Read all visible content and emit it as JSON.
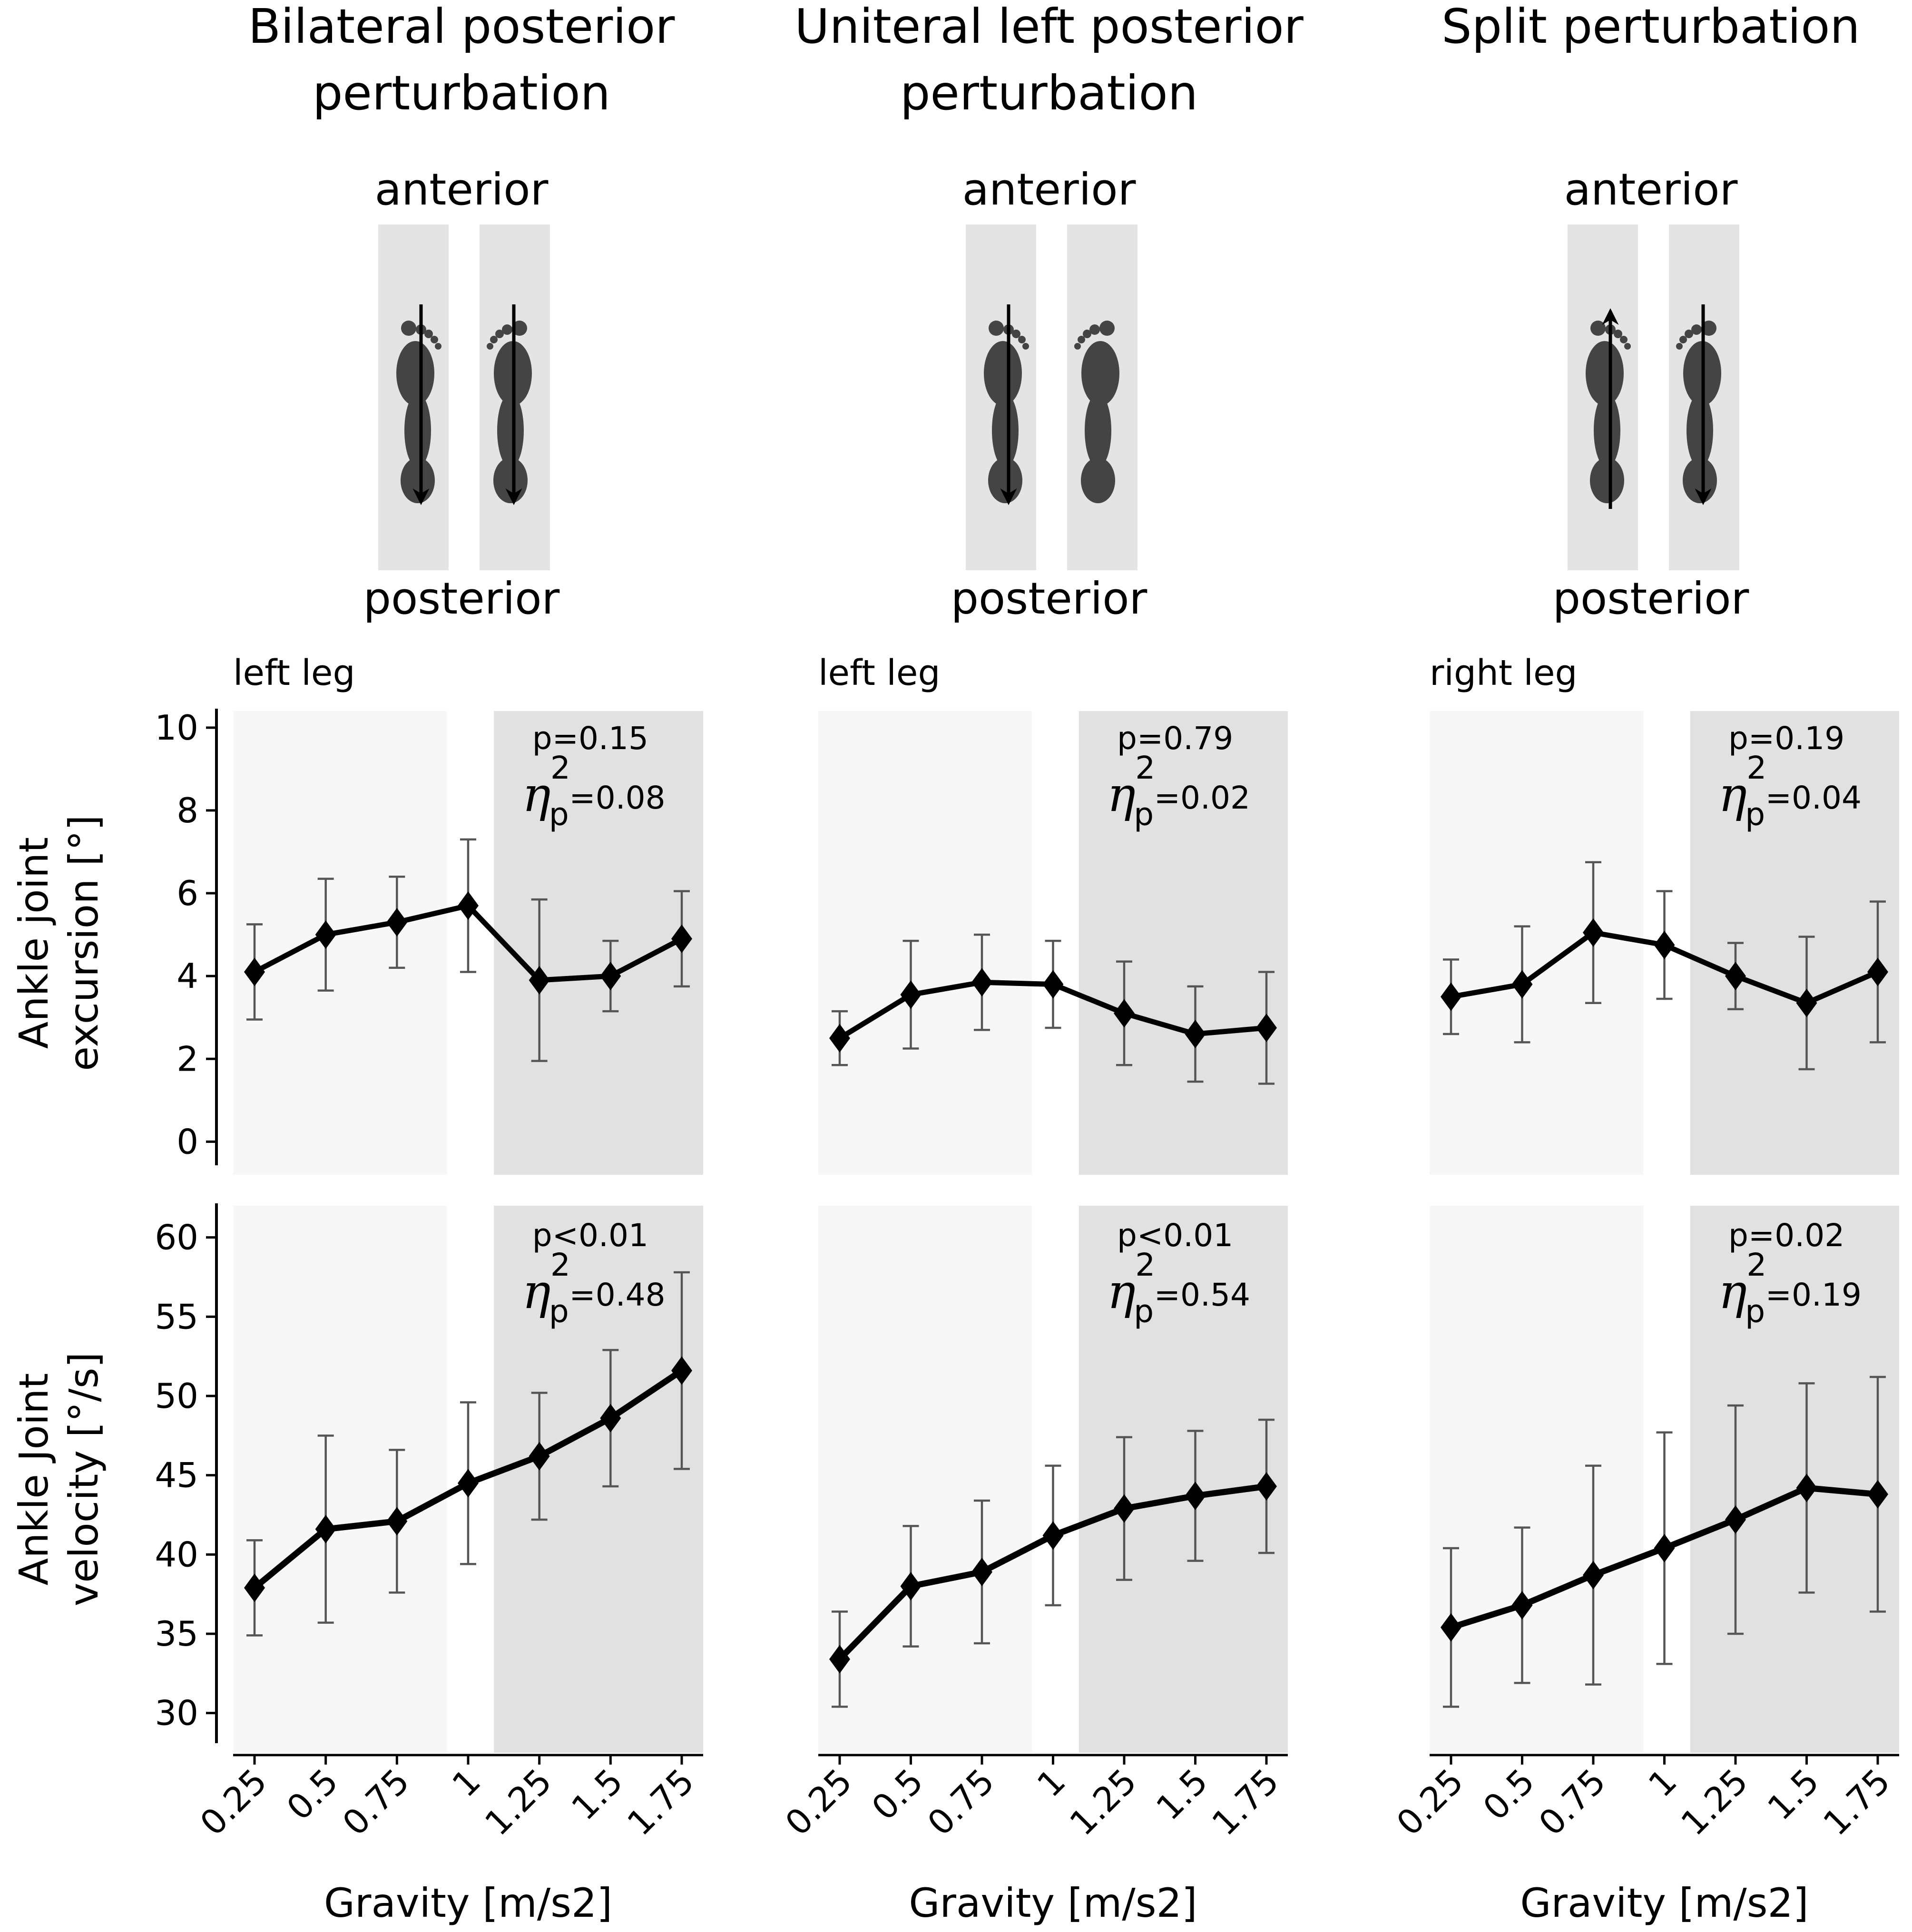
{
  "columns": [
    {
      "title_lines": [
        "Bilateral posterior",
        "perturbation"
      ],
      "direction_top": "anterior",
      "direction_bottom": "posterior",
      "arrows": {
        "left": "down",
        "right": "down"
      },
      "leg_label": "left leg",
      "excursion_stats": {
        "p": "p=0.15",
        "eta_value": "=0.08"
      },
      "velocity_stats": {
        "p": "p<0.01",
        "eta_value": "=0.48"
      }
    },
    {
      "title_lines": [
        "Uniteral left posterior",
        "perturbation"
      ],
      "direction_top": "anterior",
      "direction_bottom": "posterior",
      "arrows": {
        "left": "down",
        "right": "none"
      },
      "leg_label": "left leg",
      "excursion_stats": {
        "p": "p=0.79",
        "eta_value": "=0.02"
      },
      "velocity_stats": {
        "p": "p<0.01",
        "eta_value": "=0.54"
      }
    },
    {
      "title_lines": [
        "Split perturbation"
      ],
      "direction_top": "anterior",
      "direction_bottom": "posterior",
      "arrows": {
        "left": "up",
        "right": "down"
      },
      "leg_label": "right leg",
      "excursion_stats": {
        "p": "p=0.19",
        "eta_value": "=0.04"
      },
      "velocity_stats": {
        "p": "p=0.02",
        "eta_value": "=0.19"
      }
    }
  ],
  "eta_symbol": "η",
  "eta_super": "2",
  "eta_sub": "p",
  "chart_data": [
    {
      "type": "line",
      "panel": "Bilateral posterior - left leg - excursion",
      "categories": [
        "0.25",
        "0.5",
        "0.75",
        "1",
        "1.25",
        "1.5",
        "1.75"
      ],
      "values": [
        4.1,
        5.0,
        5.3,
        5.7,
        3.9,
        4.0,
        4.9
      ],
      "errors": [
        1.15,
        1.35,
        1.1,
        1.6,
        1.95,
        0.85,
        1.15
      ],
      "ylabel": "Ankle joint excursion [°]",
      "ylim": [
        -0.8,
        10.4
      ],
      "yticks": [
        "0",
        "2",
        "4",
        "6",
        "8",
        "10"
      ]
    },
    {
      "type": "line",
      "panel": "Uniteral left posterior - left leg - excursion",
      "categories": [
        "0.25",
        "0.5",
        "0.75",
        "1",
        "1.25",
        "1.5",
        "1.75"
      ],
      "values": [
        2.5,
        3.55,
        3.85,
        3.8,
        3.1,
        2.6,
        2.75
      ],
      "errors": [
        0.65,
        1.3,
        1.15,
        1.05,
        1.25,
        1.15,
        1.35
      ],
      "ylim": [
        -0.8,
        10.4
      ]
    },
    {
      "type": "line",
      "panel": "Split - right leg - excursion",
      "categories": [
        "0.25",
        "0.5",
        "0.75",
        "1",
        "1.25",
        "1.5",
        "1.75"
      ],
      "values": [
        3.5,
        3.8,
        5.05,
        4.75,
        4.0,
        3.35,
        4.1
      ],
      "errors": [
        0.9,
        1.4,
        1.7,
        1.3,
        0.8,
        1.6,
        1.7
      ],
      "ylim": [
        -0.8,
        10.4
      ]
    },
    {
      "type": "line",
      "panel": "Bilateral posterior - left leg - velocity",
      "categories": [
        "0.25",
        "0.5",
        "0.75",
        "1",
        "1.25",
        "1.5",
        "1.75"
      ],
      "values": [
        37.9,
        41.6,
        42.1,
        44.5,
        46.2,
        48.6,
        51.6
      ],
      "errors": [
        3.0,
        5.9,
        4.5,
        5.1,
        4.0,
        4.3,
        6.2
      ],
      "ylabel": "Ankle Joint velocity [°/s]",
      "ylim": [
        27.5,
        62
      ],
      "yticks": [
        "30",
        "35",
        "40",
        "45",
        "50",
        "55",
        "60"
      ],
      "xlabel": "Gravity [m/s2]"
    },
    {
      "type": "line",
      "panel": "Uniteral left posterior - left leg - velocity",
      "categories": [
        "0.25",
        "0.5",
        "0.75",
        "1",
        "1.25",
        "1.5",
        "1.75"
      ],
      "values": [
        33.4,
        38.0,
        38.9,
        41.2,
        42.9,
        43.7,
        44.3
      ],
      "errors": [
        3.0,
        3.8,
        4.5,
        4.4,
        4.5,
        4.1,
        4.2
      ],
      "ylim": [
        27.5,
        62
      ],
      "xlabel": "Gravity [m/s2]"
    },
    {
      "type": "line",
      "panel": "Split - right leg - velocity",
      "categories": [
        "0.25",
        "0.5",
        "0.75",
        "1",
        "1.25",
        "1.5",
        "1.75"
      ],
      "values": [
        35.4,
        36.8,
        38.7,
        40.4,
        42.2,
        44.2,
        43.8
      ],
      "errors": [
        5.0,
        4.9,
        6.9,
        7.3,
        7.2,
        6.6,
        7.4
      ],
      "ylim": [
        27.5,
        62
      ],
      "xlabel": "Gravity [m/s2]"
    }
  ],
  "colors": {
    "light_region": "#f7f7f7",
    "dark_region": "#e1e1e1",
    "treadmill": "#e4e4e4",
    "foot": "#444444",
    "line": "#000000",
    "errorbar": "#555555"
  }
}
